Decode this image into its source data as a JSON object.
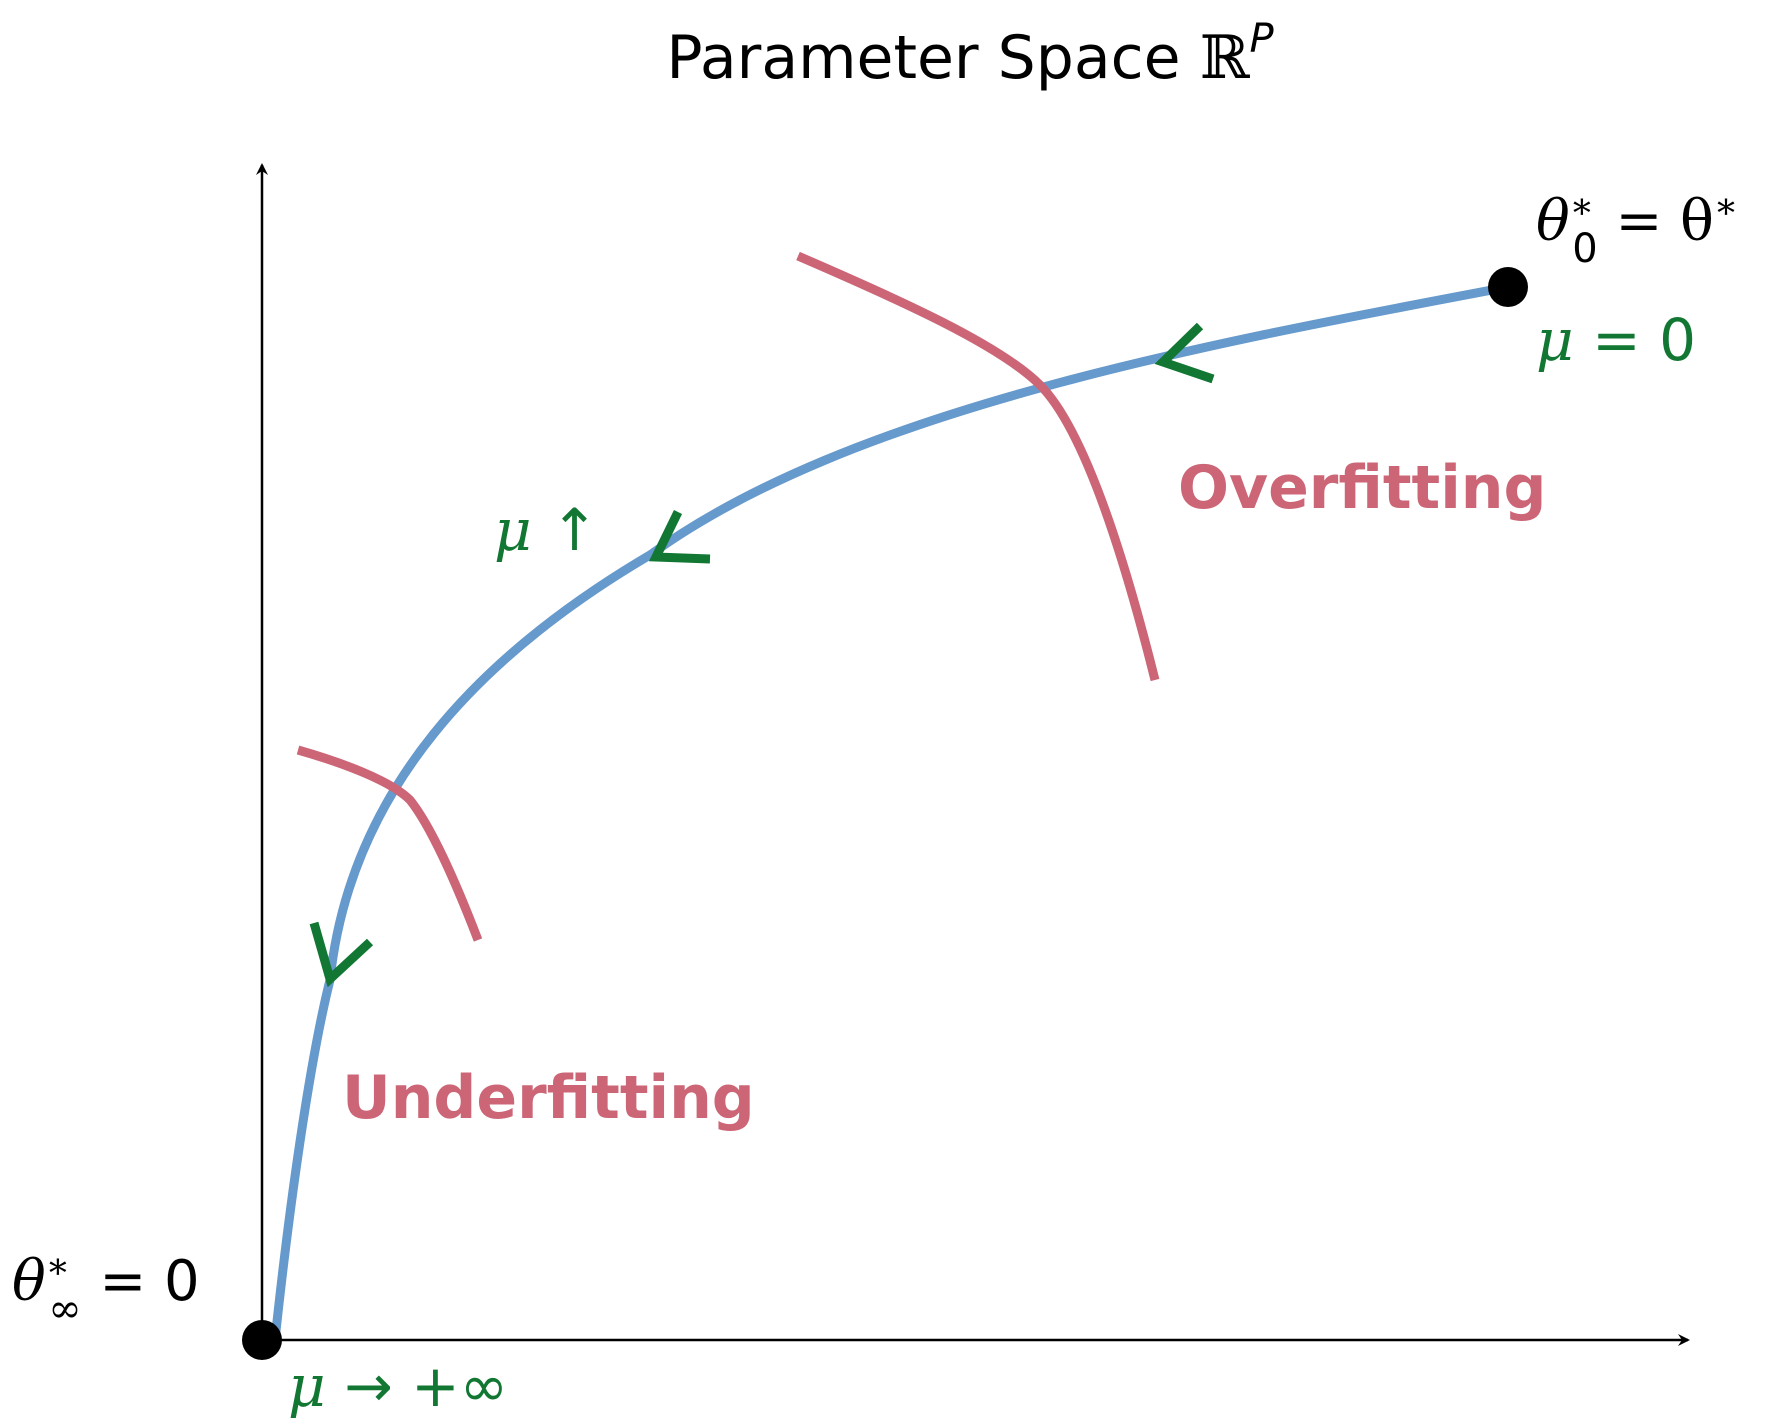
{
  "title": {
    "main": "Parameter Space ",
    "symbol": "ℝ",
    "sup": "P"
  },
  "labels": {
    "end_point": {
      "theta": "θ",
      "star": "∗",
      "sub": "0",
      "rest": " = θ",
      "star2": "∗"
    },
    "start_point": {
      "theta": "θ",
      "star": "∗",
      "sub": "∞",
      "rest": " = 0"
    },
    "mu_zero": {
      "mu": "μ",
      "rest": " = 0"
    },
    "mu_up": {
      "mu": "μ",
      "rest": " ↑"
    },
    "mu_inf": {
      "mu": "μ",
      "rest": " → +∞"
    },
    "overfitting": "Overfitting",
    "underfitting": "Underfitting"
  },
  "colors": {
    "path": "#6699cc",
    "region": "#cc6677",
    "mu": "#117733",
    "axis": "#000000"
  }
}
